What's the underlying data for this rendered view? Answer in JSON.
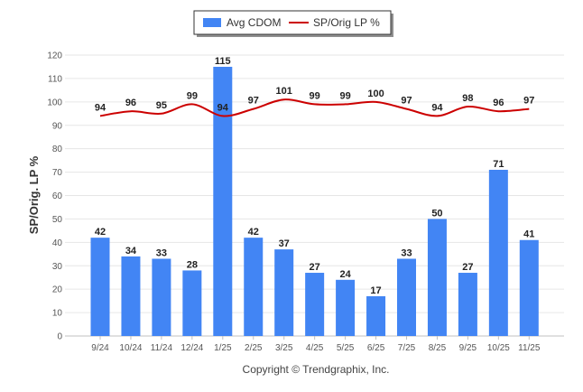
{
  "chart_data": {
    "type": "bar",
    "categories": [
      "9/24",
      "10/24",
      "11/24",
      "12/24",
      "1/25",
      "2/25",
      "3/25",
      "4/25",
      "5/25",
      "6/25",
      "7/25",
      "8/25",
      "9/25",
      "10/25",
      "11/25"
    ],
    "series": [
      {
        "name": "Avg CDOM",
        "type": "bar",
        "color": "#4285f4",
        "values": [
          42,
          34,
          33,
          28,
          115,
          42,
          37,
          27,
          24,
          17,
          33,
          50,
          27,
          71,
          41
        ]
      },
      {
        "name": "SP/Orig LP %",
        "type": "line",
        "color": "#cc0000",
        "values": [
          94,
          96,
          95,
          99,
          94,
          97,
          101,
          99,
          99,
          100,
          97,
          94,
          98,
          96,
          97
        ]
      }
    ],
    "title": "",
    "xlabel": "",
    "ylabel": "SP/Orig. LP %",
    "ylim": [
      0,
      120
    ],
    "yticks": [
      0,
      10,
      20,
      30,
      40,
      50,
      60,
      70,
      80,
      90,
      100,
      110,
      120
    ],
    "grid": true,
    "legend": "top-center"
  },
  "footer": "Copyright © Trendgraphix, Inc."
}
